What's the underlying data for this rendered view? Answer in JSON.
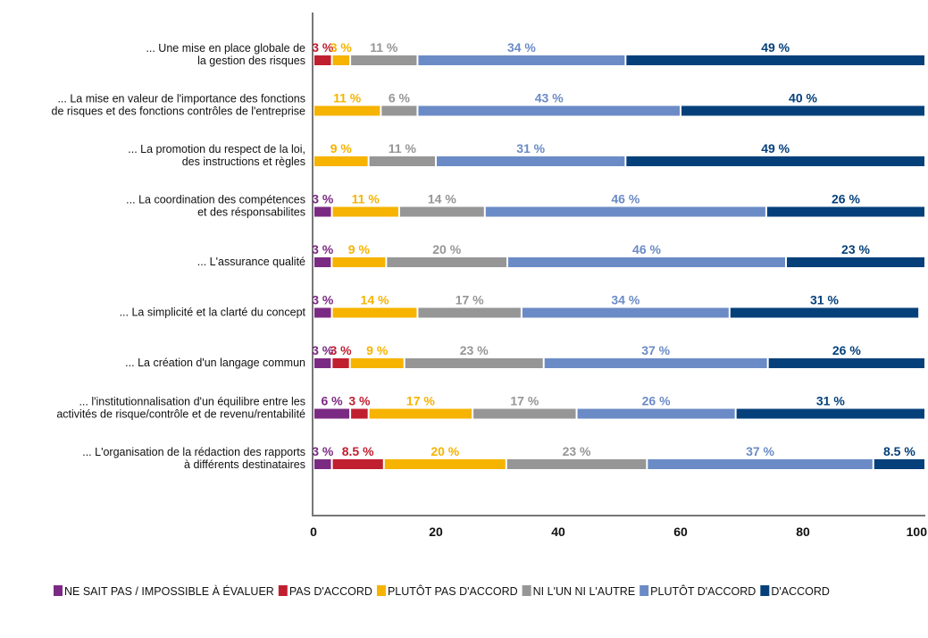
{
  "chart_data": {
    "type": "bar",
    "orientation": "horizontal",
    "stacked": true,
    "title": "",
    "xlabel": "",
    "ylabel": "",
    "xlim": [
      0,
      100
    ],
    "xticks": [
      "0",
      "20",
      "40",
      "60",
      "80",
      "100"
    ],
    "grid": false,
    "legend_position": "bottom",
    "categories": [
      [
        "... Une mise en place globale de",
        "la gestion des risques"
      ],
      [
        "... La mise en valeur de l'importance des fonctions",
        "de risques et des fonctions contrôles de l'entreprise"
      ],
      [
        "... La promotion du respect de la loi,",
        "des instructions et règles"
      ],
      [
        "... La coordination des compétences",
        "et des résponsabilites"
      ],
      [
        "... L'assurance qualité"
      ],
      [
        "... La simplicité et la clarté du concept"
      ],
      [
        "... La création d'un langage commun"
      ],
      [
        "... l'institutionnalisation d'un équilibre entre les",
        "activités de risque/contrôle et de revenu/rentabilité"
      ],
      [
        "... L'organisation de la rédaction des rapports",
        "à différents destinataires"
      ]
    ],
    "series": [
      {
        "name": "NE SAIT PAS / IMPOSSIBLE À ÉVALUER",
        "color": "#7b2a83",
        "values": [
          0,
          0,
          0,
          3,
          3,
          3,
          3,
          6,
          3
        ],
        "labels": [
          "",
          "",
          "",
          "3 %",
          "3 %",
          "3 %",
          "3 %",
          "6 %",
          "3 %"
        ]
      },
      {
        "name": "PAS D'ACCORD",
        "color": "#c01f30",
        "values": [
          3,
          0,
          0,
          0,
          0,
          0,
          3,
          3,
          8.5
        ],
        "labels": [
          "3 %",
          "",
          "",
          "",
          "",
          "",
          "3 %",
          "3 %",
          "8.5 %"
        ]
      },
      {
        "name": "PLUTÔT PAS D'ACCORD",
        "color": "#f6b300",
        "values": [
          3,
          11,
          9,
          11,
          9,
          14,
          9,
          17,
          20
        ],
        "labels": [
          "3 %",
          "11 %",
          "9 %",
          "11 %",
          "9 %",
          "14 %",
          "9 %",
          "17 %",
          "20 %"
        ]
      },
      {
        "name": "NI L'UN NI L'AUTRE",
        "color": "#969696",
        "values": [
          11,
          6,
          11,
          14,
          20,
          17,
          23,
          17,
          23
        ],
        "labels": [
          "11 %",
          "6 %",
          "11 %",
          "14 %",
          "20 %",
          "17 %",
          "23 %",
          "17 %",
          "23 %"
        ]
      },
      {
        "name": "PLUTÔT D'ACCORD",
        "color": "#6b8bc6",
        "values": [
          34,
          43,
          31,
          46,
          46,
          34,
          37,
          26,
          37
        ],
        "labels": [
          "34 %",
          "43 %",
          "31 %",
          "46 %",
          "46 %",
          "34 %",
          "37 %",
          "26 %",
          "37 %"
        ]
      },
      {
        "name": "D'ACCORD",
        "color": "#05407b",
        "values": [
          49,
          40,
          49,
          26,
          23,
          31,
          26,
          31,
          8.5
        ],
        "labels": [
          "49 %",
          "40 %",
          "49 %",
          "26 %",
          "23 %",
          "31 %",
          "26 %",
          "31 %",
          "8.5 %"
        ]
      }
    ]
  }
}
